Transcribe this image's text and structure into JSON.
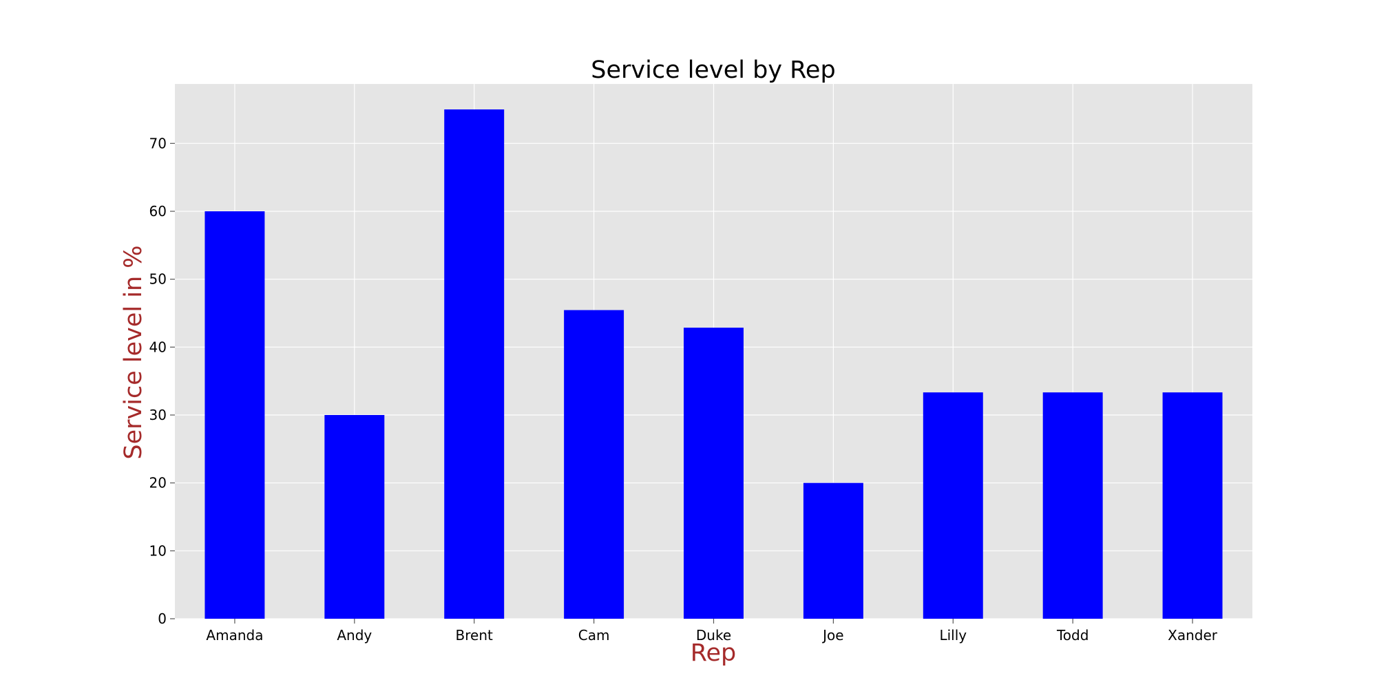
{
  "chart_data": {
    "type": "bar",
    "title": "Service level by Rep",
    "xlabel": "Rep",
    "ylabel": "Service level in %",
    "categories": [
      "Amanda",
      "Andy",
      "Brent",
      "Cam",
      "Duke",
      "Joe",
      "Lilly",
      "Todd",
      "Xander"
    ],
    "values": [
      60.0,
      30.0,
      75.0,
      45.45,
      42.86,
      20.0,
      33.33,
      33.33,
      33.33
    ],
    "ylim": [
      0,
      78.75
    ],
    "yticks": [
      0,
      10,
      20,
      30,
      40,
      50,
      60,
      70
    ],
    "grid": true,
    "bar_color": "#0000ff",
    "axes_bg": "#e5e5e5",
    "grid_color": "#ffffff",
    "label_color": "#a52a2a"
  }
}
